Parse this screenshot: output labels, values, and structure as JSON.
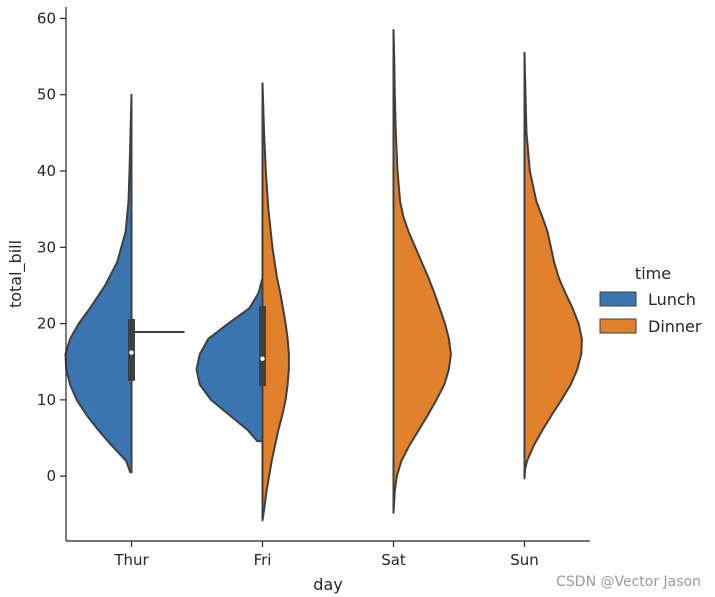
{
  "chart_data": {
    "type": "violin",
    "split": true,
    "categories": [
      "Thur",
      "Fri",
      "Sat",
      "Sun"
    ],
    "xlabel": "day",
    "ylabel": "total_bill",
    "ylim": [
      -8.5,
      61.5
    ],
    "yticks": [
      0,
      10,
      20,
      30,
      40,
      50,
      60
    ],
    "grid": false,
    "legend": {
      "title": "time",
      "placement": "right",
      "entries": [
        "Lunch",
        "Dinner"
      ]
    },
    "colors": {
      "Lunch": "#3a75af",
      "Dinner": "#e1812c",
      "outline": "#3f3f3f"
    },
    "series": [
      {
        "name": "Lunch",
        "violins": [
          {
            "category": "Thur",
            "profile": [
              [
                0.5,
                0.02
              ],
              [
                2,
                0.08
              ],
              [
                4,
                0.3
              ],
              [
                6,
                0.5
              ],
              [
                8,
                0.68
              ],
              [
                10,
                0.83
              ],
              [
                12,
                0.93
              ],
              [
                14,
                0.99
              ],
              [
                16,
                1.0
              ],
              [
                18,
                0.93
              ],
              [
                20,
                0.8
              ],
              [
                22,
                0.63
              ],
              [
                25,
                0.4
              ],
              [
                28,
                0.22
              ],
              [
                32,
                0.09
              ],
              [
                36,
                0.045
              ],
              [
                40,
                0.03
              ],
              [
                45,
                0.015
              ],
              [
                50,
                0.0
              ]
            ],
            "box": {
              "q1": 12.5,
              "median": 16.2,
              "q3": 20.6,
              "whisker_low": 7.5,
              "whisker_high": 31.7
            }
          },
          {
            "category": "Fri",
            "profile": [
              [
                4.6,
                0.08
              ],
              [
                6,
                0.22
              ],
              [
                8,
                0.5
              ],
              [
                10,
                0.78
              ],
              [
                12,
                0.95
              ],
              [
                14,
                1.0
              ],
              [
                16,
                0.95
              ],
              [
                18,
                0.82
              ],
              [
                20,
                0.52
              ],
              [
                22,
                0.2
              ],
              [
                24,
                0.06
              ],
              [
                26,
                0.0
              ]
            ],
            "box": {
              "q1": 11.8,
              "median": 15.4,
              "q3": 22.3,
              "whisker_low": 8.6,
              "whisker_high": 27.1
            }
          }
        ]
      },
      {
        "name": "Dinner",
        "violins": [
          {
            "category": "Fri",
            "profile": [
              [
                -5.8,
                0.0
              ],
              [
                -4,
                0.03
              ],
              [
                -2,
                0.06
              ],
              [
                0,
                0.1
              ],
              [
                2,
                0.14
              ],
              [
                4,
                0.19
              ],
              [
                6,
                0.24
              ],
              [
                8,
                0.3
              ],
              [
                10,
                0.35
              ],
              [
                12,
                0.38
              ],
              [
                14,
                0.4
              ],
              [
                16,
                0.4
              ],
              [
                18,
                0.38
              ],
              [
                20,
                0.35
              ],
              [
                22,
                0.31
              ],
              [
                24,
                0.27
              ],
              [
                26,
                0.22
              ],
              [
                30,
                0.15
              ],
              [
                35,
                0.09
              ],
              [
                40,
                0.05
              ],
              [
                45,
                0.025
              ],
              [
                51.5,
                0.0
              ]
            ],
            "box": null
          },
          {
            "category": "Sat",
            "profile": [
              [
                -4.8,
                0.0
              ],
              [
                -2,
                0.02
              ],
              [
                0,
                0.05
              ],
              [
                2,
                0.12
              ],
              [
                4,
                0.24
              ],
              [
                6,
                0.38
              ],
              [
                8,
                0.52
              ],
              [
                10,
                0.65
              ],
              [
                12,
                0.77
              ],
              [
                14,
                0.84
              ],
              [
                16,
                0.87
              ],
              [
                18,
                0.84
              ],
              [
                20,
                0.78
              ],
              [
                22,
                0.7
              ],
              [
                24,
                0.62
              ],
              [
                26,
                0.53
              ],
              [
                28,
                0.43
              ],
              [
                30,
                0.33
              ],
              [
                32,
                0.23
              ],
              [
                34,
                0.15
              ],
              [
                36,
                0.1
              ],
              [
                40,
                0.06
              ],
              [
                45,
                0.035
              ],
              [
                50,
                0.02
              ],
              [
                55,
                0.01
              ],
              [
                58.5,
                0.0
              ]
            ],
            "box": null
          },
          {
            "category": "Sun",
            "profile": [
              [
                -0.3,
                0.0
              ],
              [
                1,
                0.01
              ],
              [
                2,
                0.04
              ],
              [
                4,
                0.14
              ],
              [
                6,
                0.27
              ],
              [
                8,
                0.41
              ],
              [
                10,
                0.56
              ],
              [
                12,
                0.7
              ],
              [
                14,
                0.8
              ],
              [
                16,
                0.86
              ],
              [
                18,
                0.87
              ],
              [
                20,
                0.82
              ],
              [
                22,
                0.73
              ],
              [
                24,
                0.62
              ],
              [
                26,
                0.52
              ],
              [
                28,
                0.45
              ],
              [
                30,
                0.4
              ],
              [
                32,
                0.35
              ],
              [
                34,
                0.27
              ],
              [
                36,
                0.18
              ],
              [
                40,
                0.08
              ],
              [
                45,
                0.03
              ],
              [
                50,
                0.015
              ],
              [
                55.5,
                0.0
              ]
            ],
            "box": null
          }
        ]
      }
    ]
  },
  "watermark": "CSDN @Vector Jason"
}
